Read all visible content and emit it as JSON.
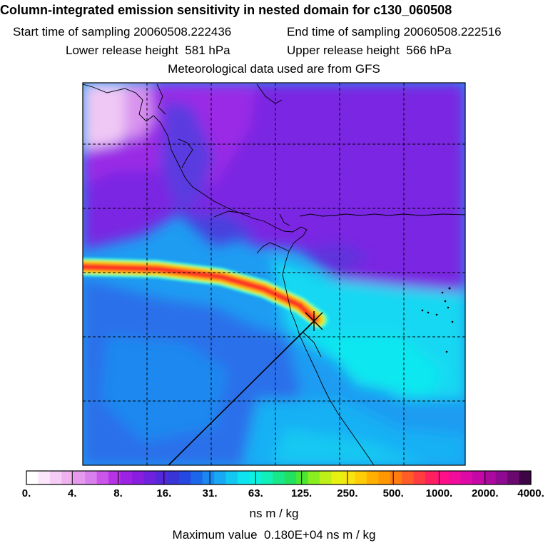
{
  "header": {
    "title": "Column-integrated emission sensitivity in nested domain for c130_060508",
    "start_label": "Start time of sampling",
    "start_value": "20060508.222436",
    "end_label": "End time of sampling",
    "end_value": "20060508.222516",
    "lower_label": "Lower release height",
    "lower_value": "581 hPa",
    "upper_label": "Upper release height",
    "upper_value": "566 hPa",
    "met_text": "Meteorological data used are from GFS"
  },
  "chart_data": {
    "type": "heatmap",
    "title": "Column-integrated emission sensitivity in nested domain for c130_060508",
    "colorbar": {
      "tick_labels": [
        "0.",
        "4.",
        "8.",
        "16.",
        "31.",
        "63.",
        "125.",
        "250.",
        "500.",
        "1000.",
        "2000.",
        "4000."
      ],
      "colors": [
        "#ffffff",
        "#fbe6fb",
        "#f5ccf5",
        "#efb2ef",
        "#e699ee",
        "#d980ee",
        "#cc55ea",
        "#b733e6",
        "#9e22e4",
        "#8a1ee0",
        "#6f22dd",
        "#5428da",
        "#3a33d6",
        "#2448e0",
        "#1c66ea",
        "#1a88f0",
        "#18a8f4",
        "#12c8f2",
        "#0ee4f0",
        "#0cf0e0",
        "#10f0b8",
        "#18e88a",
        "#22e060",
        "#4ce830",
        "#88ee20",
        "#bef018",
        "#e8f010",
        "#f8e410",
        "#ffcc08",
        "#ffb000",
        "#ff9800",
        "#ff7c10",
        "#ff5c28",
        "#ff3c40",
        "#ff2060",
        "#ff1088",
        "#f20c9c",
        "#de0aa6",
        "#c608a6",
        "#ac0a9e",
        "#8e0a90",
        "#6a0870",
        "#3e0446"
      ],
      "unit": "ns m / kg"
    },
    "max_label": "Maximum value",
    "max_value": "0.180E+04",
    "max_unit": "ns m / kg",
    "plume_colors": [
      "#ff2a20",
      "#ff7020",
      "#ffc018",
      "#c8f030",
      "#30f0c0"
    ],
    "release_point_icon": "release-point-marker"
  }
}
